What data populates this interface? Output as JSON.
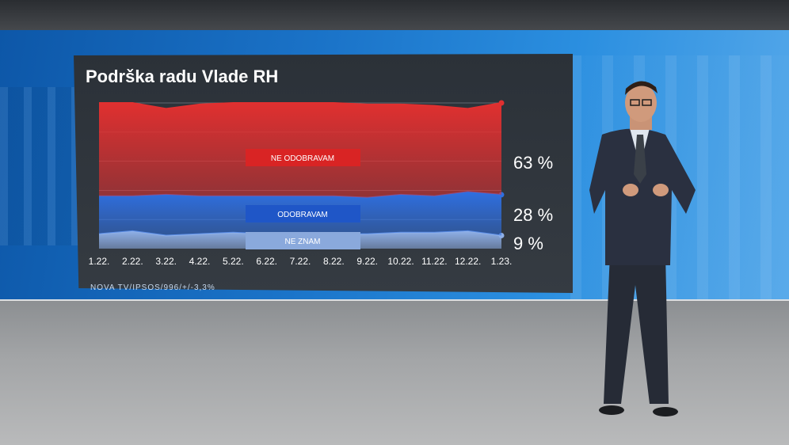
{
  "chart_data": {
    "type": "area",
    "title": "Podrška radu Vlade RH",
    "categories": [
      "1.22.",
      "2.22.",
      "3.22.",
      "4.22.",
      "5.22.",
      "6.22.",
      "7.22.",
      "8.22.",
      "9.22.",
      "10.22.",
      "11.22.",
      "12.22.",
      "1.23."
    ],
    "series": [
      {
        "name": "NE ODOBRAVAM",
        "values": [
          64,
          64,
          59,
          63,
          64,
          64,
          64,
          64,
          64,
          62,
          62,
          57,
          63
        ],
        "end_label": "63 %",
        "color": "#e03030"
      },
      {
        "name": "ODOBRAVAM",
        "values": [
          26,
          24,
          28,
          26,
          25,
          26,
          27,
          26,
          25,
          26,
          25,
          27,
          28
        ],
        "end_label": "28 %",
        "color": "#2f6fe0"
      },
      {
        "name": "NE ZNAM",
        "values": [
          10,
          12,
          9,
          10,
          11,
          10,
          9,
          10,
          10,
          11,
          11,
          12,
          9
        ],
        "end_label": "9 %",
        "color": "#8fb0e8"
      }
    ],
    "stacked": true,
    "ylim": [
      0,
      100
    ],
    "grid": true,
    "legend": "inline labels"
  },
  "source_note": "NOVA TV/IPSOS/996/+/-3,3%"
}
